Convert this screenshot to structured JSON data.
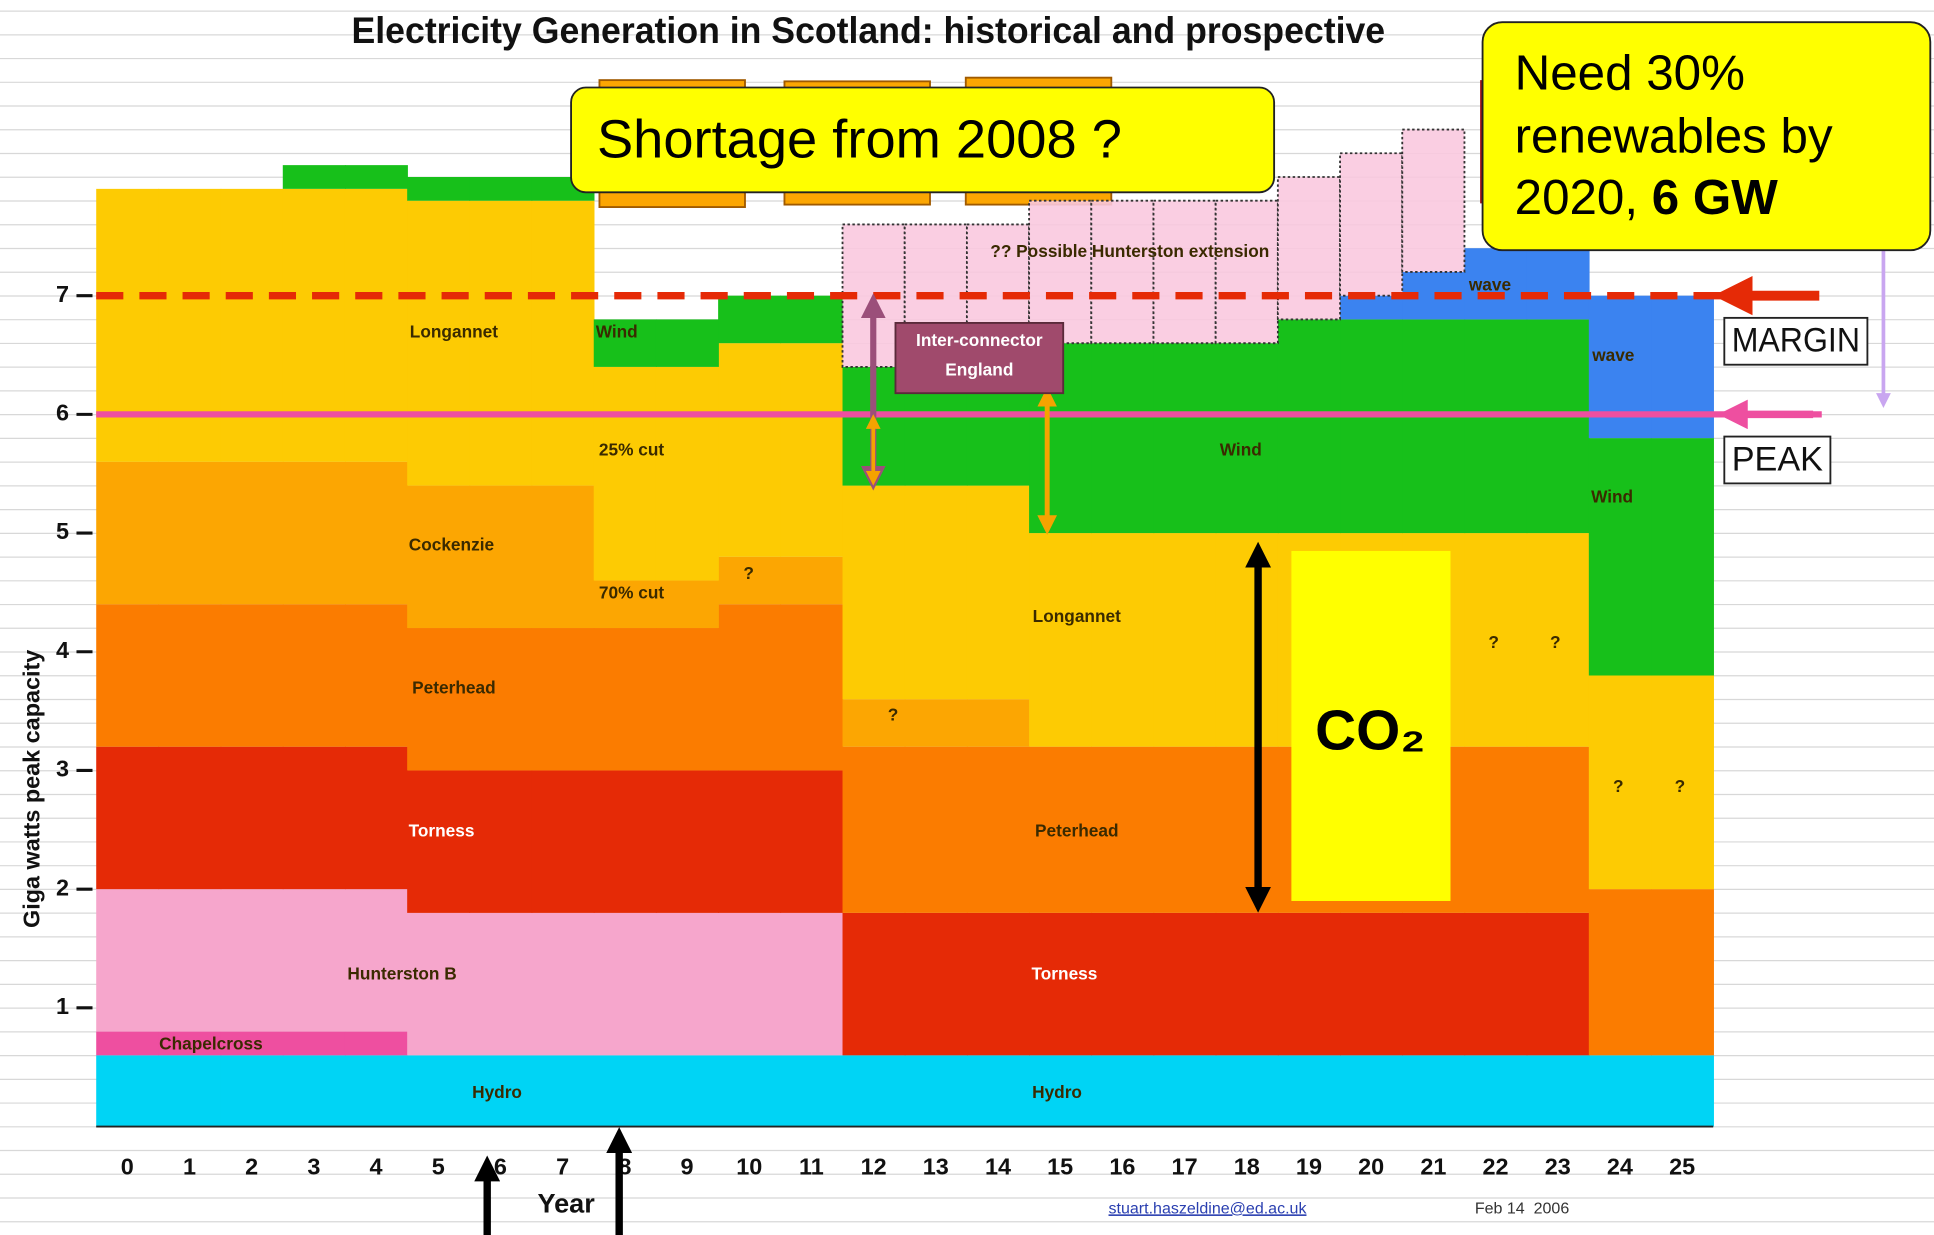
{
  "chart_data": {
    "type": "stacked_step",
    "title": "Electricity Generation in Scotland: historical and prospective",
    "x_label": "Year",
    "y_label": "Giga watts peak capacity",
    "categories": [
      "0",
      "1",
      "2",
      "3",
      "4",
      "5",
      "6",
      "7",
      "8",
      "9",
      "10",
      "11",
      "12",
      "13",
      "14",
      "15",
      "16",
      "17",
      "18",
      "19",
      "20",
      "21",
      "22",
      "23",
      "24",
      "25"
    ],
    "ylim": [
      0,
      8.5
    ],
    "yticks": [
      1,
      2,
      3,
      4,
      5,
      6,
      7
    ],
    "series": [
      {
        "name": "Hydro",
        "color": "#00d4f5",
        "values": [
          0.6,
          0.6,
          0.6,
          0.6,
          0.6,
          0.6,
          0.6,
          0.6,
          0.6,
          0.6,
          0.6,
          0.6,
          0.6,
          0.6,
          0.6,
          0.6,
          0.6,
          0.6,
          0.6,
          0.6,
          0.6,
          0.6,
          0.6,
          0.6,
          0.6,
          0.6
        ]
      },
      {
        "name": "Chapelcross",
        "color": "#ee4fa0",
        "values": [
          0.2,
          0.2,
          0.2,
          0.2,
          0.2,
          null,
          null,
          null,
          null,
          null,
          null,
          null,
          null,
          null,
          null,
          null,
          null,
          null,
          null,
          null,
          null,
          null,
          null,
          null,
          null,
          null
        ]
      },
      {
        "name": "Hunterston B",
        "color": "#f6a6cc",
        "values": [
          1.2,
          1.2,
          1.2,
          1.2,
          1.2,
          1.2,
          1.2,
          1.2,
          1.2,
          1.2,
          1.2,
          1.2,
          null,
          null,
          null,
          null,
          null,
          null,
          null,
          null,
          null,
          null,
          null,
          null,
          null,
          null
        ]
      },
      {
        "name": "Torness",
        "color": "#e52a06",
        "values": [
          1.2,
          1.2,
          1.2,
          1.2,
          1.2,
          1.2,
          1.2,
          1.2,
          1.2,
          1.2,
          1.2,
          1.2,
          1.2,
          1.2,
          1.2,
          1.2,
          1.2,
          1.2,
          1.2,
          1.2,
          1.2,
          1.2,
          1.2,
          1.2,
          null,
          null
        ]
      },
      {
        "name": "Peterhead",
        "color": "#fb7c00",
        "values": [
          1.2,
          1.2,
          1.2,
          1.2,
          1.2,
          1.2,
          1.2,
          1.2,
          1.2,
          1.2,
          1.4,
          1.4,
          1.4,
          1.4,
          1.4,
          1.4,
          1.4,
          1.4,
          1.4,
          1.4,
          1.4,
          1.4,
          1.4,
          1.4,
          1.4,
          1.4
        ]
      },
      {
        "name": "Cockenzie",
        "color": "#fca602",
        "values": [
          1.2,
          1.2,
          1.2,
          1.2,
          1.2,
          1.2,
          1.2,
          1.2,
          0.4,
          0.4,
          0.4,
          0.4,
          0.4,
          0.4,
          0.4,
          null,
          null,
          null,
          null,
          null,
          null,
          null,
          null,
          null,
          null,
          null
        ]
      },
      {
        "name": "Longannet",
        "color": "#fdcb03",
        "values": [
          2.3,
          2.3,
          2.3,
          2.3,
          2.3,
          2.4,
          2.4,
          2.4,
          1.8,
          1.8,
          1.8,
          1.8,
          1.8,
          1.8,
          1.8,
          1.8,
          1.8,
          1.8,
          1.8,
          1.8,
          1.8,
          1.8,
          1.8,
          1.8,
          1.8,
          1.8
        ]
      },
      {
        "name": "Wind",
        "color": "#17c01a",
        "values": [
          null,
          null,
          null,
          0.2,
          0.2,
          0.2,
          0.2,
          0.2,
          0.4,
          0.4,
          0.4,
          0.4,
          1.0,
          1.0,
          1.0,
          1.6,
          1.6,
          1.6,
          1.6,
          1.8,
          1.8,
          1.8,
          1.8,
          1.8,
          2.0,
          2.0
        ]
      },
      {
        "name": "wave",
        "color": "#3b83f0",
        "values": [
          null,
          null,
          null,
          null,
          null,
          null,
          null,
          null,
          null,
          null,
          null,
          null,
          null,
          null,
          null,
          null,
          null,
          null,
          null,
          null,
          0.2,
          0.4,
          0.6,
          0.6,
          1.2,
          1.2
        ]
      },
      {
        "name": "?? Possible Hunterston extension",
        "color": "#f9c9df",
        "dotted": true,
        "values": [
          null,
          null,
          null,
          null,
          null,
          null,
          null,
          null,
          null,
          null,
          null,
          null,
          1.2,
          1.2,
          1.2,
          1.2,
          1.2,
          1.2,
          1.2,
          1.2,
          1.2,
          1.2,
          null,
          null,
          null,
          null
        ]
      }
    ],
    "lines": [
      {
        "name": "MARGIN",
        "value": 7,
        "color": "#e52a06",
        "dashed": true
      },
      {
        "name": "PEAK",
        "value": 6,
        "color": "#ee4fa0",
        "dashed": false
      }
    ],
    "annotations": [
      "25% cut",
      "70% cut",
      "?",
      "Hydro",
      "Torness",
      "Peterhead",
      "Longannet",
      "?",
      "Wind",
      "Wind",
      "wave",
      "?",
      "?",
      "?",
      "?"
    ],
    "interconnector": [
      "Inter-connector",
      "England"
    ],
    "co2_label": "CO₂",
    "callout_shortage": "Shortage from 2008 ?",
    "callout_renewables": [
      "Need 30%",
      "renewables by",
      "2020, ",
      "6 GW"
    ],
    "author": "stuart.haszeldine@ed.ac.uk",
    "date": "Feb 14  2006"
  }
}
